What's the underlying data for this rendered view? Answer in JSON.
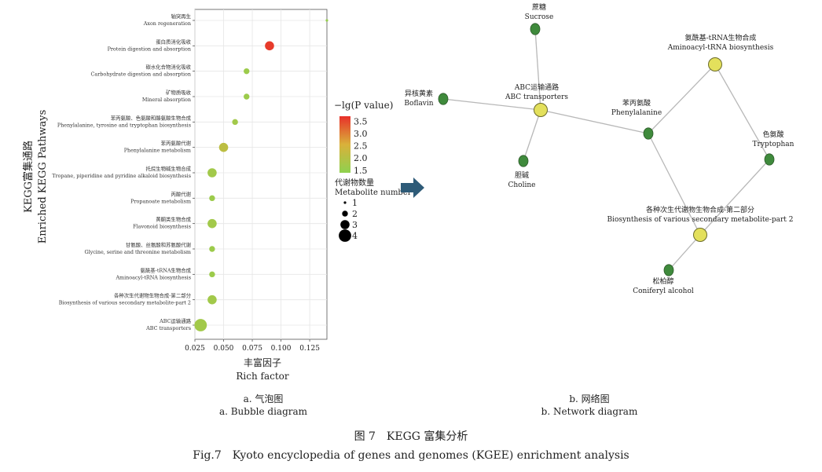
{
  "chart_data": [
    {
      "type": "scatter",
      "name": "bubble-diagram",
      "xlabel": "Rich factor",
      "xlabel_cn": "丰富因子",
      "ylabel": "Enriched KEGG Pathways",
      "ylabel_cn": "KEGG富集通路",
      "xlim": [
        0.025,
        0.14
      ],
      "xticks": [
        "0.025",
        "0.050",
        "0.075",
        "0.100",
        "0.125"
      ],
      "xtick_values": [
        0.025,
        0.05,
        0.075,
        0.1,
        0.125
      ],
      "grid": true,
      "color_legend": {
        "title": "−lg(P value)",
        "ticks": [
          "3.5",
          "3.0",
          "2.5",
          "2.0",
          "1.5"
        ],
        "tick_values": [
          3.5,
          3.0,
          2.5,
          2.0,
          1.5
        ],
        "range": [
          1.4,
          3.7
        ],
        "low_color": "#8fd14f",
        "high_color": "#e8302a"
      },
      "size_legend": {
        "title_cn": "代谢物数量",
        "title": "Metabolite number",
        "values": [
          1,
          2,
          3,
          4
        ]
      },
      "points": [
        {
          "cn": "轴突再生",
          "en": "Axon regeneration",
          "x": 0.14,
          "size": 1,
          "color": 1.5
        },
        {
          "cn": "蛋白质消化吸收",
          "en": "Protein digestion and absorption",
          "x": 0.09,
          "size": 3,
          "color": 3.6
        },
        {
          "cn": "碳水化合物消化吸收",
          "en": "Carbohydrate digestion and absorption",
          "x": 0.07,
          "size": 2,
          "color": 1.6
        },
        {
          "cn": "矿物质吸收",
          "en": "Mineral absorption",
          "x": 0.07,
          "size": 2,
          "color": 1.6
        },
        {
          "cn": "苯丙氨酸、色氨酸和酪氨酸生物合成",
          "en": "Phenylalanine, tyrosine and tryptophan biosynthesis",
          "x": 0.06,
          "size": 2,
          "color": 1.7
        },
        {
          "cn": "苯丙氨酸代谢",
          "en": "Phenylalanine metabolism",
          "x": 0.05,
          "size": 3,
          "color": 2.1
        },
        {
          "cn": "托烷生物碱生物合成",
          "en": "Tropane, piperidine and pyridine alkaloid biosynthesis",
          "x": 0.04,
          "size": 3,
          "color": 1.7
        },
        {
          "cn": "丙酸代谢",
          "en": "Propanoate metabolism",
          "x": 0.04,
          "size": 2,
          "color": 1.6
        },
        {
          "cn": "黄酮类生物合成",
          "en": "Flavonoid biosynthesis",
          "x": 0.04,
          "size": 3,
          "color": 1.7
        },
        {
          "cn": "甘氨酸、丝氨酸和苏氨酸代谢",
          "en": "Glycine, serine and threonine metabolism",
          "x": 0.04,
          "size": 2,
          "color": 1.6
        },
        {
          "cn": "氨酰基-tRNA生物合成",
          "en": "Aminoacyl-tRNA biosynthesis",
          "x": 0.04,
          "size": 2,
          "color": 1.6
        },
        {
          "cn": "各种次生代谢物生物合成-第二部分",
          "en": "Biosynthesis of various secondary metabolite-part 2",
          "x": 0.04,
          "size": 3,
          "color": 1.7
        },
        {
          "cn": "ABC运输通路",
          "en": "ABC transporters",
          "x": 0.03,
          "size": 4,
          "color": 1.7
        }
      ]
    },
    {
      "type": "network",
      "name": "network-diagram",
      "node_colors": {
        "pathway": "#e3e05c",
        "metabolite": "#3f8a3c"
      },
      "nodes": [
        {
          "id": "sucrose",
          "kind": "metabolite",
          "cn": "蔗糖",
          "en": "Sucrose"
        },
        {
          "id": "boflavin",
          "kind": "metabolite",
          "cn": "异核黄素",
          "en": "Boflavin"
        },
        {
          "id": "abc",
          "kind": "pathway",
          "cn": "ABC运输通路",
          "en": "ABC transporters"
        },
        {
          "id": "choline",
          "kind": "metabolite",
          "cn": "胆碱",
          "en": "Choline"
        },
        {
          "id": "aminoacyl",
          "kind": "pathway",
          "cn": "氨酰基-tRNA生物合成",
          "en": "Aminoacyl-tRNA biosynthesis"
        },
        {
          "id": "phe",
          "kind": "metabolite",
          "cn": "苯丙氨酸",
          "en": "Phenylalanine"
        },
        {
          "id": "trp",
          "kind": "metabolite",
          "cn": "色氨酸",
          "en": "Tryptophan"
        },
        {
          "id": "biosyn",
          "kind": "pathway",
          "cn": "各种次生代谢物生物合成-第二部分",
          "en": "Biosynthesis of various secondary metabolite-part 2"
        },
        {
          "id": "coniferyl",
          "kind": "metabolite",
          "cn": "松柏醇",
          "en": "Coniferyl alcohol"
        }
      ],
      "edges": [
        [
          "sucrose",
          "abc"
        ],
        [
          "boflavin",
          "abc"
        ],
        [
          "choline",
          "abc"
        ],
        [
          "phe",
          "abc"
        ],
        [
          "phe",
          "aminoacyl"
        ],
        [
          "trp",
          "aminoacyl"
        ],
        [
          "phe",
          "biosyn"
        ],
        [
          "trp",
          "biosyn"
        ],
        [
          "coniferyl",
          "biosyn"
        ]
      ]
    }
  ],
  "captions": {
    "a_cn": "a. 气泡图",
    "a_en": "a. Bubble diagram",
    "b_cn": "b. 网络图",
    "b_en": "b. Network diagram",
    "fig_cn": "图 7　KEGG 富集分析",
    "fig_en": "Fig.7　Kyoto encyclopedia of genes and genomes (KGEE) enrichment analysis"
  },
  "colors": {
    "arrow": "#2e5b78",
    "grid": "#e6e6e6",
    "edge": "#b8b8b8"
  }
}
